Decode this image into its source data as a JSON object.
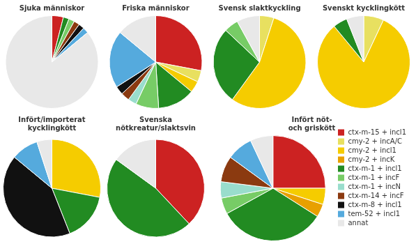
{
  "chart_data": [
    {
      "type": "pie",
      "title": "Sjuka människor",
      "categories": [
        "ctx-m-15 + incl1",
        "cmy-2 + incA/C",
        "cmy-2 + incl1",
        "cmy-2 + incK",
        "ctx-m-1 + incl1",
        "ctx-m-1 + incF",
        "ctx-m-1 + incN",
        "ctx-m-14 + incF",
        "ctx-m-8 + incl1",
        "tem-52 + incl1",
        "annat"
      ],
      "values": [
        4,
        0,
        0,
        0,
        2,
        2,
        0,
        2,
        2,
        2,
        86
      ],
      "colors": [
        "#cc2222",
        "#e8e060",
        "#f5cc00",
        "#e8a000",
        "#228B22",
        "#77cc66",
        "#99ddcc",
        "#8B3A10",
        "#111111",
        "#55aadd",
        "#e8e8e8"
      ]
    },
    {
      "type": "pie",
      "title": "Friska människor",
      "categories": [
        "ctx-m-15 + incl1",
        "cmy-2 + incA/C",
        "cmy-2 + incl1",
        "cmy-2 + incK",
        "ctx-m-1 + incl1",
        "ctx-m-1 + incF",
        "ctx-m-1 + incN",
        "ctx-m-14 + incF",
        "ctx-m-8 + incl1",
        "tem-52 + incl1",
        "annat"
      ],
      "values": [
        28,
        4,
        4,
        0,
        13,
        8,
        3,
        3,
        3,
        20,
        14
      ],
      "colors": [
        "#cc2222",
        "#e8e060",
        "#f5cc00",
        "#e8a000",
        "#228B22",
        "#77cc66",
        "#99ddcc",
        "#8B3A10",
        "#111111",
        "#55aadd",
        "#e8e8e8"
      ]
    },
    {
      "type": "pie",
      "title": "Svensk slaktkyckling",
      "categories": [
        "ctx-m-15 + incl1",
        "cmy-2 + incA/C",
        "cmy-2 + incl1",
        "cmy-2 + incK",
        "ctx-m-1 + incl1",
        "ctx-m-1 + incF",
        "ctx-m-1 + incN",
        "ctx-m-14 + incF",
        "ctx-m-8 + incl1",
        "tem-52 + incl1",
        "annat"
      ],
      "values": [
        0,
        5,
        55,
        0,
        27,
        5,
        0,
        0,
        0,
        0,
        8
      ],
      "colors": [
        "#cc2222",
        "#e8e060",
        "#f5cc00",
        "#e8a000",
        "#228B22",
        "#77cc66",
        "#99ddcc",
        "#8B3A10",
        "#111111",
        "#55aadd",
        "#e8e8e8"
      ]
    },
    {
      "type": "pie",
      "title": "Svenskt kycklingkött",
      "categories": [
        "ctx-m-15 + incl1",
        "cmy-2 + incA/C",
        "cmy-2 + incl1",
        "cmy-2 + incK",
        "ctx-m-1 + incl1",
        "ctx-m-1 + incF",
        "ctx-m-1 + incN",
        "ctx-m-14 + incF",
        "ctx-m-8 + incl1",
        "tem-52 + incl1",
        "annat"
      ],
      "values": [
        0,
        7,
        82,
        0,
        5,
        0,
        0,
        0,
        0,
        0,
        6
      ],
      "colors": [
        "#cc2222",
        "#e8e060",
        "#f5cc00",
        "#e8a000",
        "#228B22",
        "#77cc66",
        "#99ddcc",
        "#8B3A10",
        "#111111",
        "#55aadd",
        "#e8e8e8"
      ]
    },
    {
      "type": "pie",
      "title": "Infört/importerat\nkycklingkött",
      "categories": [
        "ctx-m-15 + incl1",
        "cmy-2 + incA/C",
        "cmy-2 + incl1",
        "cmy-2 + incK",
        "ctx-m-1 + incl1",
        "ctx-m-1 + incF",
        "ctx-m-1 + incN",
        "ctx-m-14 + incF",
        "ctx-m-8 + incl1",
        "tem-52 + incl1",
        "annat"
      ],
      "values": [
        0,
        0,
        28,
        0,
        16,
        0,
        0,
        0,
        42,
        9,
        5
      ],
      "colors": [
        "#cc2222",
        "#e8e060",
        "#f5cc00",
        "#e8a000",
        "#228B22",
        "#77cc66",
        "#99ddcc",
        "#8B3A10",
        "#111111",
        "#55aadd",
        "#e8e8e8"
      ]
    },
    {
      "type": "pie",
      "title": "Svenska\nnötkreatur/slaktsvin",
      "categories": [
        "ctx-m-15 + incl1",
        "cmy-2 + incA/C",
        "cmy-2 + incl1",
        "cmy-2 + incK",
        "ctx-m-1 + incl1",
        "ctx-m-1 + incF",
        "ctx-m-1 + incN",
        "ctx-m-14 + incF",
        "ctx-m-8 + incl1",
        "tem-52 + incl1",
        "annat"
      ],
      "values": [
        38,
        0,
        0,
        0,
        47,
        0,
        0,
        0,
        0,
        0,
        15
      ],
      "colors": [
        "#cc2222",
        "#e8e060",
        "#f5cc00",
        "#e8a000",
        "#228B22",
        "#77cc66",
        "#99ddcc",
        "#8B3A10",
        "#111111",
        "#55aadd",
        "#e8e8e8"
      ]
    },
    {
      "type": "pie",
      "title": "Infört nöt-\noch griskött",
      "legend": "right",
      "categories": [
        "ctx-m-15 + incl1",
        "cmy-2 + incA/C",
        "cmy-2 + incl1",
        "cmy-2 + incK",
        "ctx-m-1 + incl1",
        "ctx-m-1 + incF",
        "ctx-m-1 + incN",
        "ctx-m-14 + incF",
        "ctx-m-8 + incl1",
        "tem-52 + incl1",
        "annat"
      ],
      "values": [
        25,
        0,
        5,
        4,
        33,
        5,
        5,
        8,
        0,
        8,
        7
      ],
      "colors": [
        "#cc2222",
        "#e8e060",
        "#f5cc00",
        "#e8a000",
        "#228B22",
        "#77cc66",
        "#99ddcc",
        "#8B3A10",
        "#111111",
        "#55aadd",
        "#e8e8e8"
      ]
    }
  ]
}
